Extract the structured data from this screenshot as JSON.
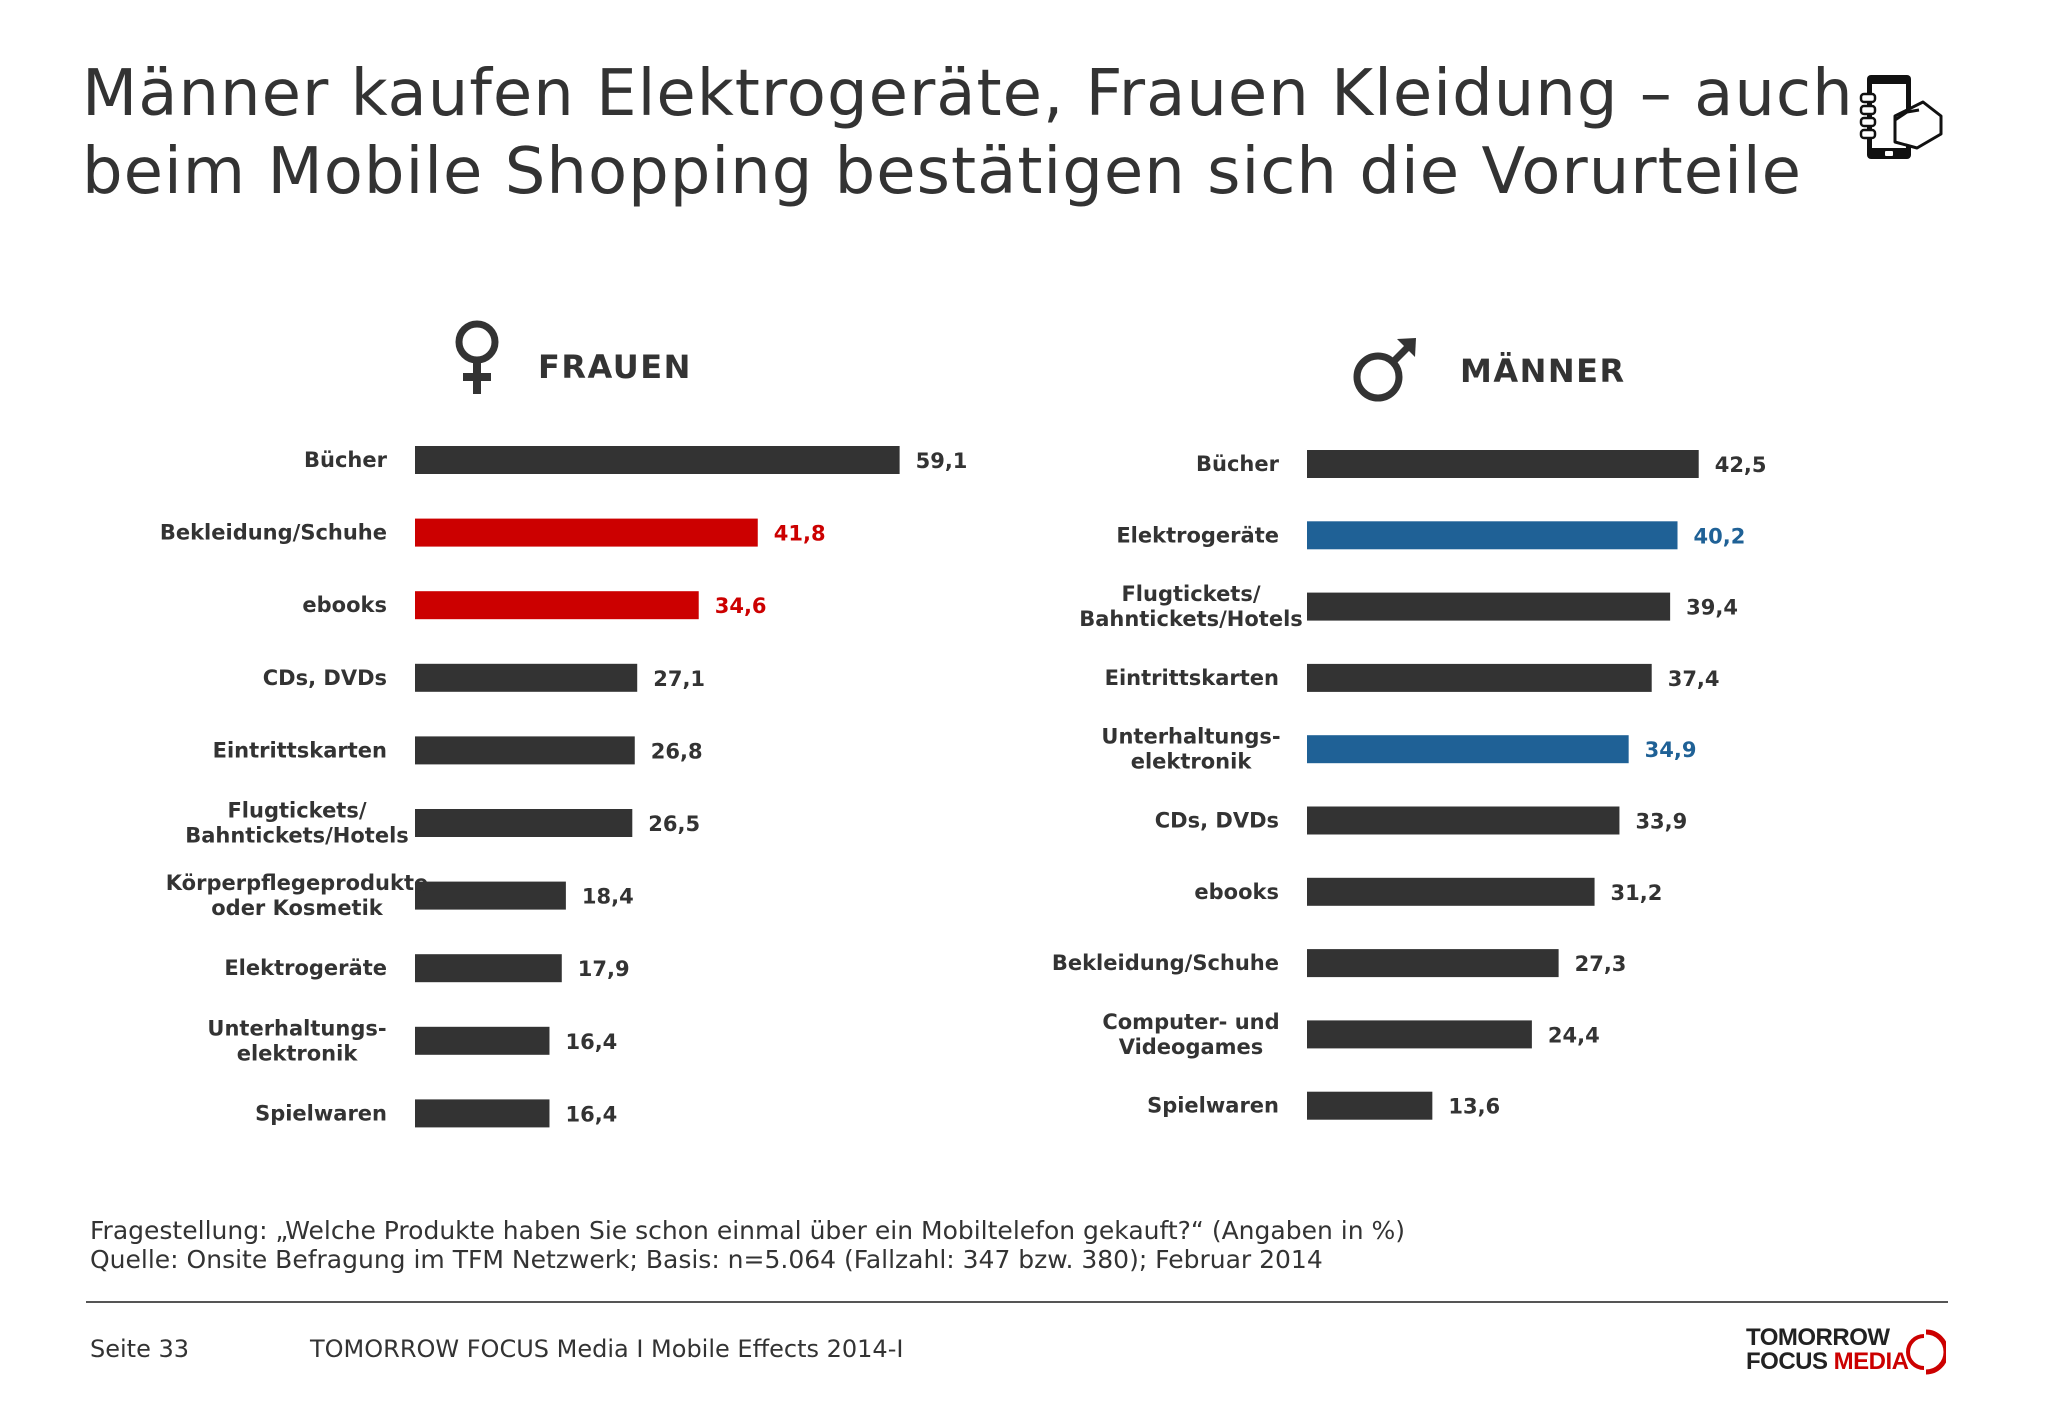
{
  "title": {
    "line1": "Männer kaufen Elektrogeräte, Frauen Kleidung – auch",
    "line2": "beim Mobile Shopping bestätigen sich die Vorurteile"
  },
  "icons": {
    "phone": "smartphone-hand-icon",
    "female": "female-symbol-icon",
    "male": "male-symbol-icon"
  },
  "colors": {
    "default_bar": "#333333",
    "female_highlight": "#cc0000",
    "male_highlight": "#1f6196"
  },
  "chart_data": [
    {
      "type": "bar",
      "orientation": "horizontal",
      "title": "FRAUEN",
      "categories": [
        "Bücher",
        "Bekleidung/Schuhe",
        "ebooks",
        "CDs, DVDs",
        "Eintrittskarten",
        "Flugtickets/\nBahntickets/Hotels",
        "Körperpflegeprodukte\noder Kosmetik",
        "Elektrogeräte",
        "Unterhaltungs-\nelektronik",
        "Spielwaren"
      ],
      "values": [
        59.1,
        41.8,
        34.6,
        27.1,
        26.8,
        26.5,
        18.4,
        17.9,
        16.4,
        16.4
      ],
      "value_labels": [
        "59,1",
        "41,8",
        "34,6",
        "27,1",
        "26,8",
        "26,5",
        "18,4",
        "17,9",
        "16,4",
        "16,4"
      ],
      "highlighted": [
        false,
        true,
        true,
        false,
        false,
        false,
        false,
        false,
        false,
        false
      ],
      "highlight_color": "#cc0000",
      "xlim": [
        0,
        60
      ]
    },
    {
      "type": "bar",
      "orientation": "horizontal",
      "title": "MÄNNER",
      "categories": [
        "Bücher",
        "Elektrogeräte",
        "Flugtickets/\nBahntickets/Hotels",
        "Eintrittskarten",
        "Unterhaltungs-\nelektronik",
        "CDs, DVDs",
        "ebooks",
        "Bekleidung/Schuhe",
        "Computer- und\nVideogames",
        "Spielwaren"
      ],
      "values": [
        42.5,
        40.2,
        39.4,
        37.4,
        34.9,
        33.9,
        31.2,
        27.3,
        24.4,
        13.6
      ],
      "value_labels": [
        "42,5",
        "40,2",
        "39,4",
        "37,4",
        "34,9",
        "33,9",
        "31,2",
        "27,3",
        "24,4",
        "13,6"
      ],
      "highlighted": [
        false,
        true,
        false,
        false,
        true,
        false,
        false,
        false,
        false,
        false
      ],
      "highlight_color": "#1f6196",
      "xlim": [
        0,
        60
      ]
    }
  ],
  "notes": {
    "question": "Fragestellung: „Welche Produkte haben Sie schon einmal über ein Mobiltelefon gekauft?“ (Angaben in %)",
    "source": "Quelle: Onsite Befragung im TFM Netzwerk; Basis: n=5.064 (Fallzahl: 347 bzw. 380); Februar 2014"
  },
  "footer": {
    "page": "Seite 33",
    "publication": "TOMORROW FOCUS Media  I  Mobile Effects 2014-I",
    "logo_line1": "TOMORROW",
    "logo_line2_a": "FOCUS ",
    "logo_line2_b": "MEDIA"
  }
}
